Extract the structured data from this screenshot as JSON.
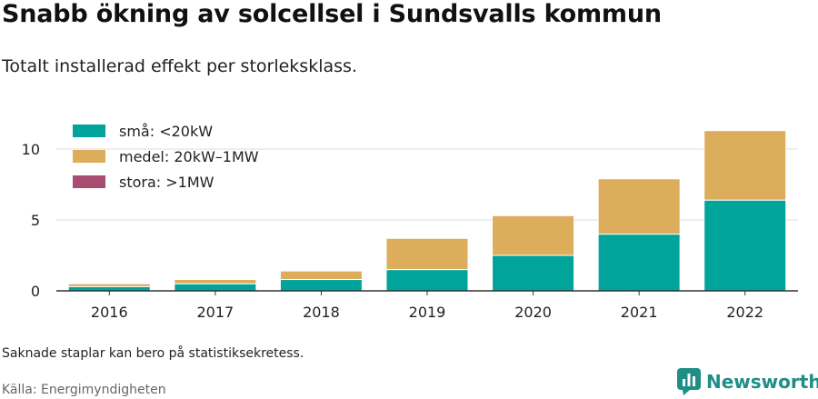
{
  "header": {
    "title": "Snabb ökning av solcellsel i Sundsvalls kommun",
    "subtitle": "Totalt installerad effekt per storleksklass."
  },
  "footer": {
    "note": "Saknade staplar kan bero på statistiksekretess.",
    "source": "Källa: Energimyndigheten",
    "brand": "Newsworthy",
    "brand_icon": "newsworthy-logo-icon"
  },
  "colors": {
    "sma": "#00a49a",
    "medel": "#dcad5b",
    "stora": "#a64d71",
    "grid": "#dddddd",
    "axis": "#333333",
    "brand": "#1f8e86"
  },
  "chart_data": {
    "type": "bar",
    "stacked": true,
    "categories": [
      "2016",
      "2017",
      "2018",
      "2019",
      "2020",
      "2021",
      "2022"
    ],
    "series": [
      {
        "name": "små: <20kW",
        "values": [
          0.3,
          0.5,
          0.8,
          1.5,
          2.5,
          4.0,
          6.4
        ]
      },
      {
        "name": "medel: 20kW–1MW",
        "values": [
          0.2,
          0.3,
          0.6,
          2.2,
          2.8,
          3.9,
          4.9
        ]
      },
      {
        "name": "stora: >1MW",
        "values": [
          0,
          0,
          0,
          0,
          0,
          0,
          0
        ]
      }
    ],
    "yticks": [
      0,
      5,
      10
    ],
    "ylim": [
      0,
      12
    ],
    "xlabel": "",
    "ylabel": "",
    "grid": true,
    "legend": "top-left"
  }
}
